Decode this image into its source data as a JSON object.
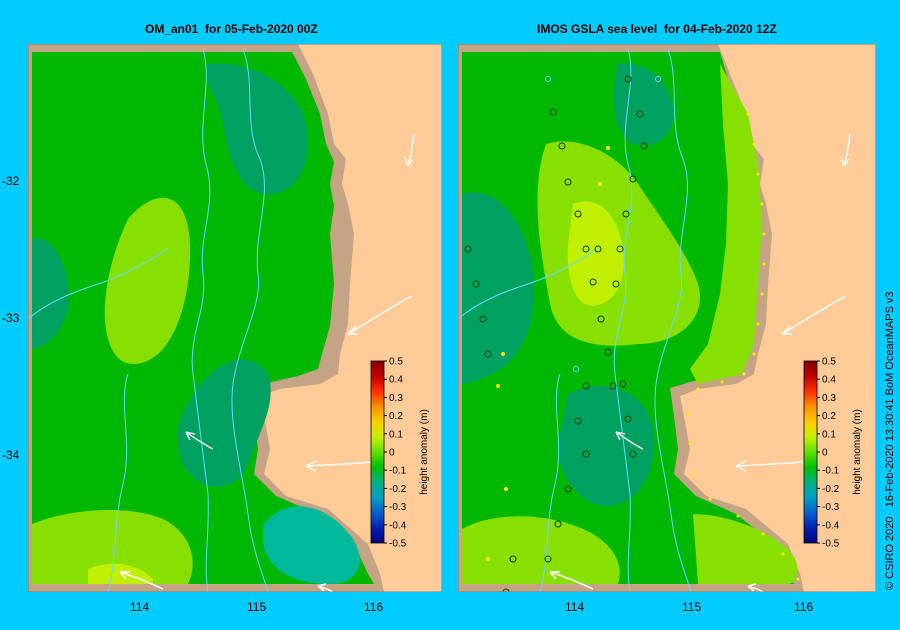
{
  "panels": [
    {
      "title": "OM_an01  for 05-Feb-2020 00Z",
      "colorbar": {
        "label": "height anomaly (m)",
        "ticks": [
          "0.5",
          "0.4",
          "0.3",
          "0.2",
          "0.1",
          "0",
          "-0.1",
          "-0.2",
          "-0.3",
          "-0.4",
          "-0.5"
        ]
      }
    },
    {
      "title": "IMOS GSLA sea level  for 04-Feb-2020 12Z",
      "colorbar": {
        "label": "height anomaly (m)",
        "ticks": [
          "0.5",
          "0.4",
          "0.3",
          "0.2",
          "0.1",
          "0",
          "-0.1",
          "-0.2",
          "-0.3",
          "-0.4",
          "-0.5"
        ]
      }
    }
  ],
  "lat_ticks": [
    "-32",
    "-33",
    "-34"
  ],
  "lon_ticks": [
    "114",
    "115",
    "116"
  ],
  "credit": "© CSIRO 2020   16-Feb-2020 13:30:41 BoM OceanMAPS v3",
  "colors": {
    "background": "#00ccff",
    "land": "#ffcc99",
    "shore": "#c4a484",
    "anomaly_zero": "#00b800",
    "anomaly_positive": "#88e000",
    "anomaly_negative": "#00a060"
  }
}
